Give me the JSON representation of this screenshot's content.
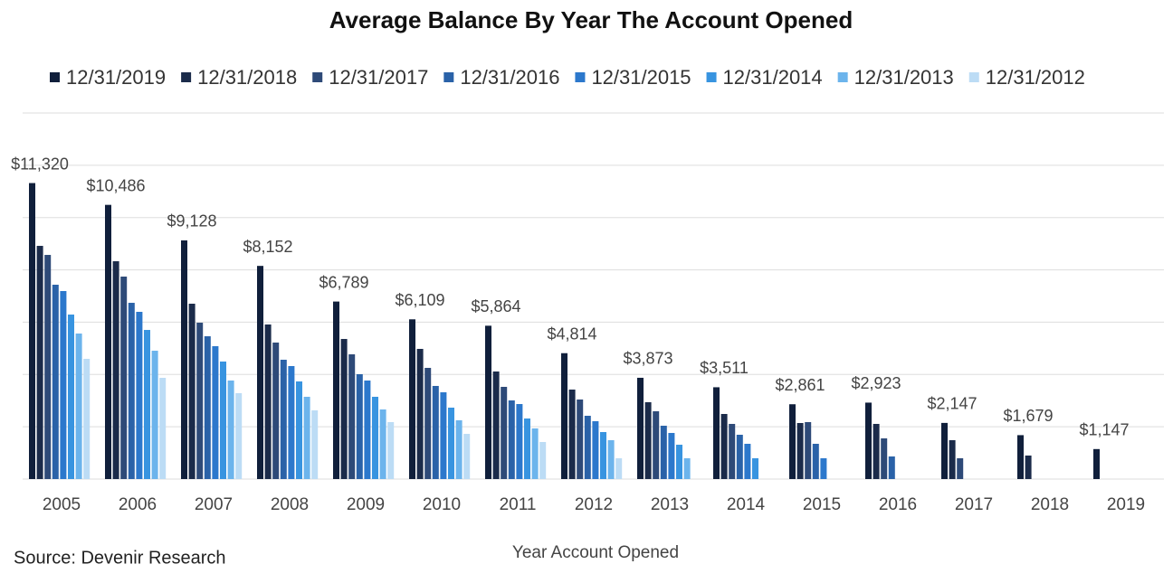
{
  "chart_data": {
    "type": "bar",
    "title": "Average Balance By Year The Account Opened",
    "x_label": "Year Account Opened",
    "source": "Source: Devenir Research",
    "categories": [
      "2005",
      "2006",
      "2007",
      "2008",
      "2009",
      "2010",
      "2011",
      "2012",
      "2013",
      "2014",
      "2015",
      "2016",
      "2017",
      "2018",
      "2019"
    ],
    "series": [
      {
        "name": "12/31/2019",
        "color": "#101f3b",
        "values": [
          11320,
          10486,
          9128,
          8152,
          6789,
          6109,
          5864,
          4814,
          3873,
          3511,
          2861,
          2923,
          2147,
          1679,
          1147
        ],
        "value_labels": [
          "$11,320",
          "$10,486",
          "$9,128",
          "$8,152",
          "$6,789",
          "$6,109",
          "$5,864",
          "$4,814",
          "$3,873",
          "$3,511",
          "$2,861",
          "$2,923",
          "$2,147",
          "$1,679",
          "$1,147"
        ]
      },
      {
        "name": "12/31/2018",
        "color": "#1b2b4a",
        "values": [
          8918,
          8330,
          6706,
          5911,
          5357,
          4978,
          4113,
          3422,
          2938,
          2489,
          2143,
          2109,
          1486,
          899,
          null
        ]
      },
      {
        "name": "12/31/2017",
        "color": "#2e4a78",
        "values": [
          8572,
          7743,
          5980,
          5220,
          4770,
          4252,
          3526,
          3042,
          2592,
          2109,
          2178,
          1556,
          795,
          null,
          null
        ]
      },
      {
        "name": "12/31/2016",
        "color": "#2a62a8",
        "values": [
          7432,
          6740,
          5461,
          4563,
          4010,
          3561,
          3007,
          2420,
          2039,
          1694,
          1348,
          864,
          null,
          null,
          null
        ]
      },
      {
        "name": "12/31/2015",
        "color": "#2c78cc",
        "values": [
          7190,
          6395,
          5081,
          4321,
          3768,
          3318,
          2869,
          2212,
          1763,
          1348,
          795,
          null,
          null,
          null,
          null
        ]
      },
      {
        "name": "12/31/2014",
        "color": "#3894e0",
        "values": [
          6291,
          5703,
          4494,
          3733,
          3146,
          2731,
          2316,
          1797,
          1313,
          795,
          null,
          null,
          null,
          null,
          null
        ]
      },
      {
        "name": "12/31/2013",
        "color": "#6cb4ec",
        "values": [
          5565,
          4908,
          3768,
          3146,
          2662,
          2247,
          1936,
          1486,
          795,
          null,
          null,
          null,
          null,
          null,
          null
        ]
      },
      {
        "name": "12/31/2012",
        "color": "#bcdcf5",
        "values": [
          4597,
          3871,
          3284,
          2627,
          2178,
          1728,
          1417,
          795,
          null,
          null,
          null,
          null,
          null,
          null,
          null
        ]
      }
    ],
    "ylim": [
      0,
      14000
    ],
    "yticks": [
      0,
      2000,
      4000,
      6000,
      8000,
      10000,
      12000,
      14000
    ],
    "grid": true
  }
}
